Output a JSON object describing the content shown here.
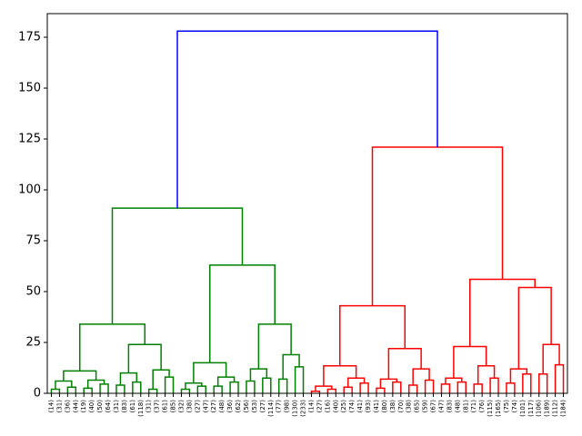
{
  "chart_data": {
    "type": "dendrogram",
    "leaves": [
      "(14)",
      "(31)",
      "(36)",
      "(44)",
      "(19)",
      "(40)",
      "(50)",
      "(64)",
      "(31)",
      "(83)",
      "(61)",
      "(118)",
      "(31)",
      "(37)",
      "(61)",
      "(85)",
      "(32)",
      "(38)",
      "(27)",
      "(47)",
      "(27)",
      "(48)",
      "(36)",
      "(62)",
      "(56)",
      "(53)",
      "(27)",
      "(114)",
      "(77)",
      "(98)",
      "(130)",
      "(233)",
      "(14)",
      "(27)",
      "(16)",
      "(40)",
      "(25)",
      "(74)",
      "(41)",
      "(93)",
      "(41)",
      "(80)",
      "(38)",
      "(70)",
      "(38)",
      "(65)",
      "(59)",
      "(67)",
      "(47)",
      "(83)",
      "(48)",
      "(81)",
      "(71)",
      "(76)",
      "(115)",
      "(165)",
      "(75)",
      "(74)",
      "(101)",
      "(117)",
      "(106)",
      "(189)",
      "(112)",
      "(184)"
    ],
    "merges": [
      {
        "left": 0,
        "right": 1,
        "height": 2,
        "color": "#008000"
      },
      {
        "left": 2,
        "right": 3,
        "height": 3,
        "color": "#008000"
      },
      {
        "left": 64,
        "right": 65,
        "height": 6,
        "color": "#008000"
      },
      {
        "left": 4,
        "right": 5,
        "height": 2.5,
        "color": "#008000"
      },
      {
        "left": 6,
        "right": 7,
        "height": 4.5,
        "color": "#008000"
      },
      {
        "left": 67,
        "right": 68,
        "height": 6.5,
        "color": "#008000"
      },
      {
        "left": 66,
        "right": 69,
        "height": 11,
        "color": "#008000"
      },
      {
        "left": 8,
        "right": 9,
        "height": 4,
        "color": "#008000"
      },
      {
        "left": 10,
        "right": 11,
        "height": 5.5,
        "color": "#008000"
      },
      {
        "left": 71,
        "right": 72,
        "height": 10,
        "color": "#008000"
      },
      {
        "left": 12,
        "right": 13,
        "height": 2,
        "color": "#008000"
      },
      {
        "left": 14,
        "right": 15,
        "height": 8,
        "color": "#008000"
      },
      {
        "left": 74,
        "right": 75,
        "height": 11.5,
        "color": "#008000"
      },
      {
        "left": 73,
        "right": 76,
        "height": 24,
        "color": "#008000"
      },
      {
        "left": 70,
        "right": 77,
        "height": 34,
        "color": "#008000"
      },
      {
        "left": 16,
        "right": 17,
        "height": 2,
        "color": "#008000"
      },
      {
        "left": 18,
        "right": 19,
        "height": 3.5,
        "color": "#008000"
      },
      {
        "left": 79,
        "right": 80,
        "height": 5,
        "color": "#008000"
      },
      {
        "left": 20,
        "right": 21,
        "height": 3.5,
        "color": "#008000"
      },
      {
        "left": 22,
        "right": 23,
        "height": 5.5,
        "color": "#008000"
      },
      {
        "left": 82,
        "right": 83,
        "height": 8,
        "color": "#008000"
      },
      {
        "left": 81,
        "right": 84,
        "height": 15,
        "color": "#008000"
      },
      {
        "left": 24,
        "right": 25,
        "height": 6,
        "color": "#008000"
      },
      {
        "left": 26,
        "right": 27,
        "height": 7.5,
        "color": "#008000"
      },
      {
        "left": 86,
        "right": 87,
        "height": 12,
        "color": "#008000"
      },
      {
        "left": 28,
        "right": 29,
        "height": 7,
        "color": "#008000"
      },
      {
        "left": 30,
        "right": 31,
        "height": 13,
        "color": "#008000"
      },
      {
        "left": 89,
        "right": 90,
        "height": 19,
        "color": "#008000"
      },
      {
        "left": 88,
        "right": 91,
        "height": 34,
        "color": "#008000"
      },
      {
        "left": 85,
        "right": 92,
        "height": 63,
        "color": "#008000"
      },
      {
        "left": 78,
        "right": 93,
        "height": 91,
        "color": "#008000"
      },
      {
        "left": 32,
        "right": 33,
        "height": 1,
        "color": "#ff0000"
      },
      {
        "left": 34,
        "right": 35,
        "height": 2,
        "color": "#ff0000"
      },
      {
        "left": 95,
        "right": 96,
        "height": 3.5,
        "color": "#ff0000"
      },
      {
        "left": 36,
        "right": 37,
        "height": 3,
        "color": "#ff0000"
      },
      {
        "left": 38,
        "right": 39,
        "height": 5,
        "color": "#ff0000"
      },
      {
        "left": 98,
        "right": 99,
        "height": 7.5,
        "color": "#ff0000"
      },
      {
        "left": 97,
        "right": 100,
        "height": 13.5,
        "color": "#ff0000"
      },
      {
        "left": 40,
        "right": 41,
        "height": 2.5,
        "color": "#ff0000"
      },
      {
        "left": 42,
        "right": 43,
        "height": 5.5,
        "color": "#ff0000"
      },
      {
        "left": 102,
        "right": 103,
        "height": 7,
        "color": "#ff0000"
      },
      {
        "left": 44,
        "right": 45,
        "height": 4,
        "color": "#ff0000"
      },
      {
        "left": 46,
        "right": 47,
        "height": 6.5,
        "color": "#ff0000"
      },
      {
        "left": 105,
        "right": 106,
        "height": 12,
        "color": "#ff0000"
      },
      {
        "left": 104,
        "right": 107,
        "height": 22,
        "color": "#ff0000"
      },
      {
        "left": 101,
        "right": 108,
        "height": 43,
        "color": "#ff0000"
      },
      {
        "left": 48,
        "right": 49,
        "height": 4.5,
        "color": "#ff0000"
      },
      {
        "left": 50,
        "right": 51,
        "height": 5.5,
        "color": "#ff0000"
      },
      {
        "left": 110,
        "right": 111,
        "height": 7.5,
        "color": "#ff0000"
      },
      {
        "left": 52,
        "right": 53,
        "height": 4.5,
        "color": "#ff0000"
      },
      {
        "left": 54,
        "right": 55,
        "height": 7.5,
        "color": "#ff0000"
      },
      {
        "left": 113,
        "right": 114,
        "height": 13.5,
        "color": "#ff0000"
      },
      {
        "left": 112,
        "right": 115,
        "height": 23,
        "color": "#ff0000"
      },
      {
        "left": 56,
        "right": 57,
        "height": 5,
        "color": "#ff0000"
      },
      {
        "left": 58,
        "right": 59,
        "height": 9.5,
        "color": "#ff0000"
      },
      {
        "left": 117,
        "right": 118,
        "height": 12,
        "color": "#ff0000"
      },
      {
        "left": 60,
        "right": 61,
        "height": 9.5,
        "color": "#ff0000"
      },
      {
        "left": 62,
        "right": 63,
        "height": 14,
        "color": "#ff0000"
      },
      {
        "left": 120,
        "right": 121,
        "height": 24,
        "color": "#ff0000"
      },
      {
        "left": 119,
        "right": 122,
        "height": 52,
        "color": "#ff0000"
      },
      {
        "left": 116,
        "right": 123,
        "height": 56,
        "color": "#ff0000"
      },
      {
        "left": 109,
        "right": 124,
        "height": 121,
        "color": "#ff0000"
      },
      {
        "left": 94,
        "right": 125,
        "height": 178,
        "color": "#0000ff"
      }
    ],
    "ylim": [
      0,
      186.6
    ],
    "yticks": [
      0,
      25,
      50,
      75,
      100,
      125,
      150,
      175
    ]
  }
}
